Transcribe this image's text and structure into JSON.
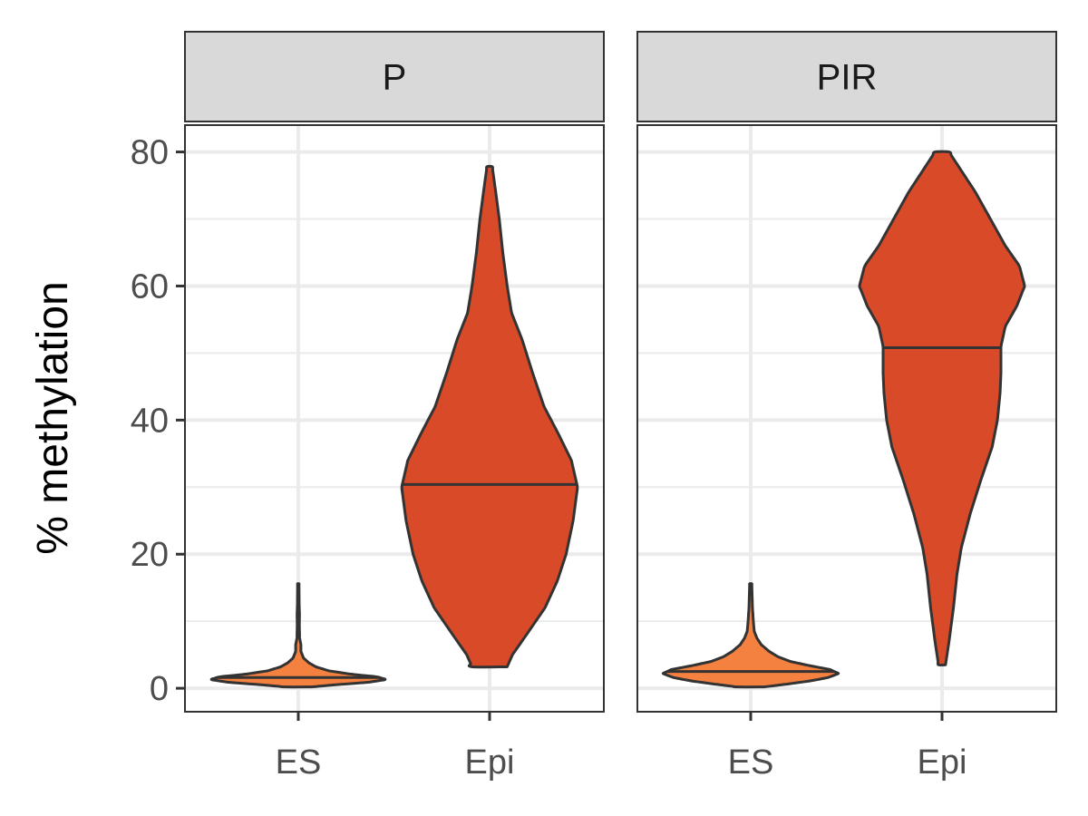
{
  "chart_data": {
    "type": "violin",
    "ylabel": "% methylation",
    "xlabel": "",
    "ylim": [
      -3.5,
      84
    ],
    "y_ticks": [
      "0",
      "20",
      "40",
      "60",
      "80"
    ],
    "grid": true,
    "categories": [
      "ES",
      "Epi"
    ],
    "colors": {
      "ES": "#F58141",
      "Epi": "#D94A29",
      "strip_fill": "#D9D9D9",
      "outline": "#333333",
      "grid": "#EBEBEB"
    },
    "panels": [
      {
        "title": "P",
        "violins": [
          {
            "category": "ES",
            "median": 1.6,
            "min": 0.2,
            "max": 15.6,
            "profile": [
              [
                0.2,
                0.15
              ],
              [
                0.5,
                0.4
              ],
              [
                0.9,
                0.8
              ],
              [
                1.3,
                1.0
              ],
              [
                1.7,
                0.9
              ],
              [
                2.1,
                0.6
              ],
              [
                2.6,
                0.35
              ],
              [
                3.2,
                0.2
              ],
              [
                3.8,
                0.12
              ],
              [
                4.5,
                0.06
              ],
              [
                5.5,
                0.03
              ],
              [
                6.5,
                0.03
              ],
              [
                7.5,
                0.015
              ],
              [
                9.5,
                0.012
              ],
              [
                11,
                0.014
              ],
              [
                12.5,
                0.01
              ],
              [
                15.6,
                0.008
              ]
            ]
          },
          {
            "category": "Epi",
            "median": 30.4,
            "min": 3.2,
            "max": 77.8,
            "profile": [
              [
                3.2,
                0.2
              ],
              [
                5,
                0.26
              ],
              [
                8,
                0.42
              ],
              [
                12,
                0.63
              ],
              [
                16,
                0.77
              ],
              [
                20,
                0.87
              ],
              [
                25,
                0.95
              ],
              [
                30,
                1.0
              ],
              [
                34,
                0.93
              ],
              [
                38,
                0.78
              ],
              [
                42,
                0.62
              ],
              [
                47,
                0.49
              ],
              [
                52,
                0.37
              ],
              [
                56,
                0.25
              ],
              [
                60,
                0.2
              ],
              [
                65,
                0.15
              ],
              [
                70,
                0.11
              ],
              [
                74,
                0.07
              ],
              [
                77.8,
                0.03
              ]
            ]
          }
        ]
      },
      {
        "title": "PIR",
        "violins": [
          {
            "category": "ES",
            "median": 2.5,
            "min": 0.2,
            "max": 15.6,
            "profile": [
              [
                0.2,
                0.15
              ],
              [
                0.6,
                0.4
              ],
              [
                1.1,
                0.68
              ],
              [
                1.6,
                0.88
              ],
              [
                2.2,
                1.0
              ],
              [
                2.8,
                0.9
              ],
              [
                3.4,
                0.66
              ],
              [
                4.0,
                0.45
              ],
              [
                4.7,
                0.31
              ],
              [
                5.5,
                0.21
              ],
              [
                6.5,
                0.12
              ],
              [
                7.5,
                0.07
              ],
              [
                8.5,
                0.04
              ],
              [
                10,
                0.03
              ],
              [
                12,
                0.02
              ],
              [
                15.6,
                0.012
              ]
            ]
          },
          {
            "category": "Epi",
            "median": 50.8,
            "min": 3.5,
            "max": 80,
            "profile": [
              [
                3.5,
                0.04
              ],
              [
                7,
                0.08
              ],
              [
                12,
                0.13
              ],
              [
                17,
                0.17
              ],
              [
                21,
                0.22
              ],
              [
                26,
                0.32
              ],
              [
                31,
                0.44
              ],
              [
                36,
                0.57
              ],
              [
                40,
                0.63
              ],
              [
                44,
                0.66
              ],
              [
                47,
                0.67
              ],
              [
                51,
                0.67
              ],
              [
                54,
                0.72
              ],
              [
                57,
                0.85
              ],
              [
                60,
                0.94
              ],
              [
                63,
                0.88
              ],
              [
                66,
                0.72
              ],
              [
                70,
                0.55
              ],
              [
                74,
                0.38
              ],
              [
                78,
                0.18
              ],
              [
                80,
                0.08
              ]
            ]
          }
        ]
      }
    ]
  }
}
